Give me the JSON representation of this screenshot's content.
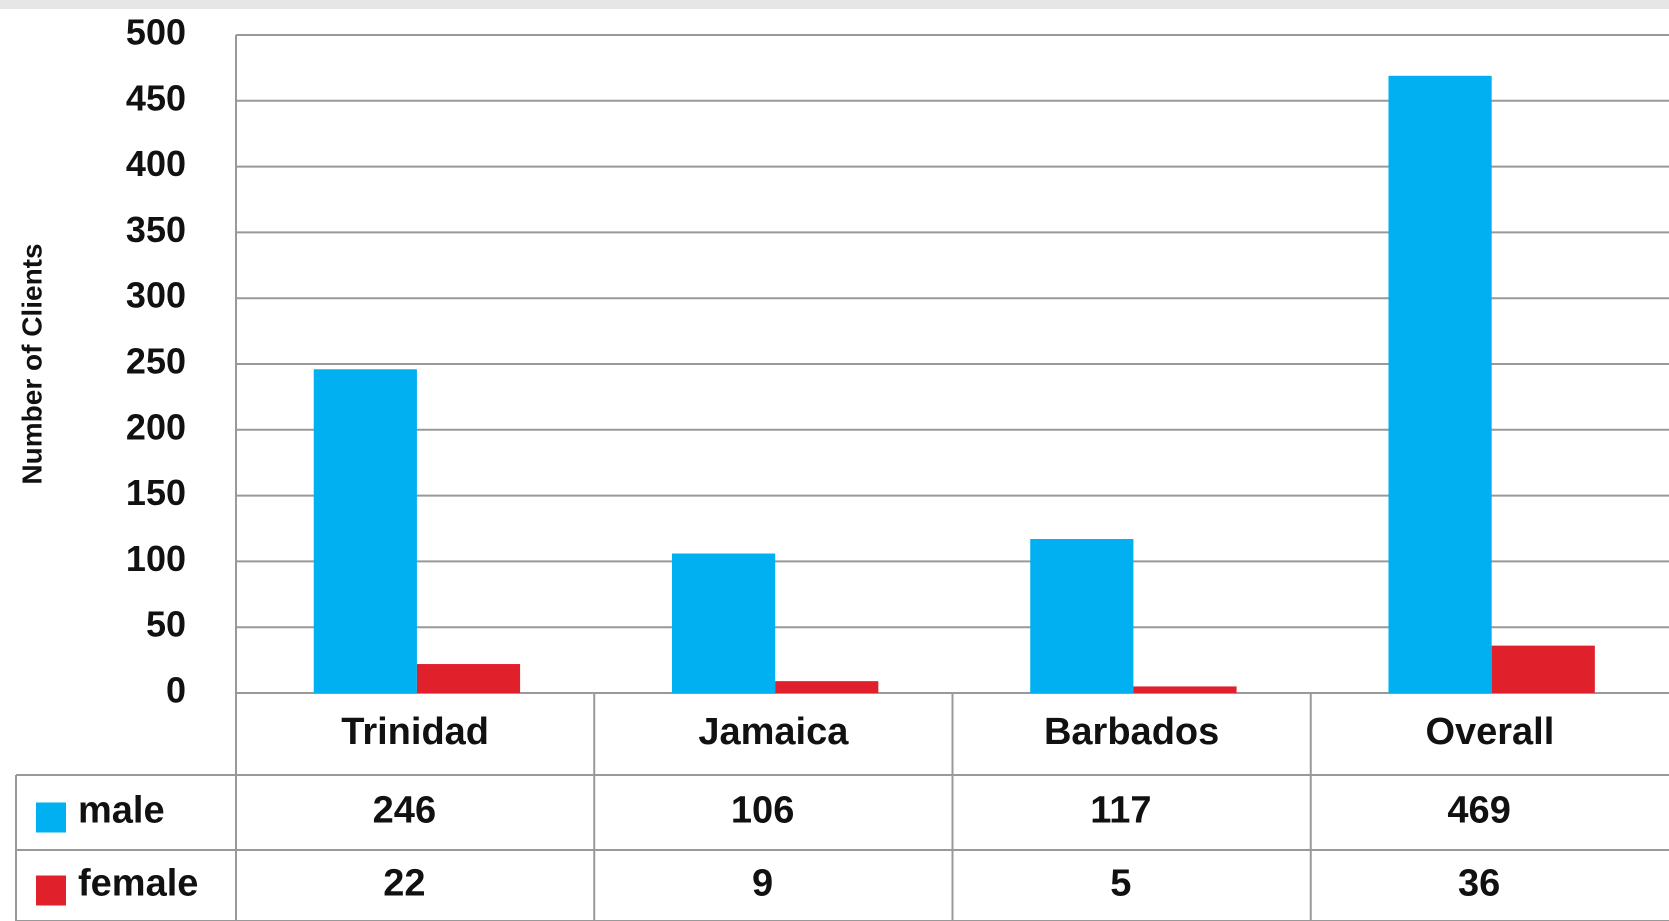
{
  "chart_data": {
    "type": "bar",
    "y_label": "Number of Clients",
    "categories": [
      "Trinidad",
      "Jamaica",
      "Barbados",
      "Overall"
    ],
    "series": [
      {
        "name": "male",
        "color": "#00b0f0",
        "values": [
          246,
          106,
          117,
          469
        ]
      },
      {
        "name": "female",
        "color": "#e0202a",
        "values": [
          22,
          9,
          5,
          36
        ]
      }
    ],
    "ylim": [
      0,
      500
    ],
    "yticks": [
      0,
      50,
      100,
      150,
      200,
      250,
      300,
      350,
      400,
      450,
      500
    ],
    "grid": true,
    "data_table": true
  }
}
